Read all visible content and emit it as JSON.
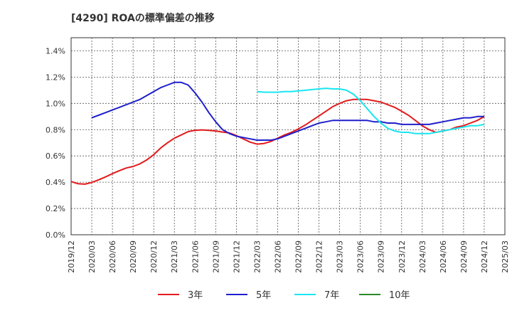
{
  "chart_data": {
    "type": "line",
    "title": "[4290]  ROAの標準偏差の推移",
    "xlabel": "",
    "ylabel": "",
    "ylim": [
      0,
      0.015
    ],
    "yticks": [
      0,
      0.002,
      0.004,
      0.006,
      0.008,
      0.01,
      0.012,
      0.014
    ],
    "ytick_labels": [
      "0.0%",
      "0.2%",
      "0.4%",
      "0.6%",
      "0.8%",
      "1.0%",
      "1.2%",
      "1.4%"
    ],
    "x_tick_labels": [
      "2019/12",
      "2020/03",
      "2020/06",
      "2020/09",
      "2020/12",
      "2021/03",
      "2021/06",
      "2021/09",
      "2021/12",
      "2022/03",
      "2022/06",
      "2022/09",
      "2022/12",
      "2023/03",
      "2023/06",
      "2023/09",
      "2023/12",
      "2024/03",
      "2024/06",
      "2024/09",
      "2024/12",
      "2025/03"
    ],
    "grid": true,
    "legend_position": "bottom",
    "series": [
      {
        "name": "3年",
        "color": "#e31a1c",
        "x": [
          "2019/12",
          "2020/01",
          "2020/02",
          "2020/03",
          "2020/04",
          "2020/05",
          "2020/06",
          "2020/07",
          "2020/08",
          "2020/09",
          "2020/10",
          "2020/11",
          "2020/12",
          "2021/01",
          "2021/02",
          "2021/03",
          "2021/04",
          "2021/05",
          "2021/06",
          "2021/07",
          "2021/08",
          "2021/09",
          "2021/10",
          "2021/11",
          "2021/12",
          "2022/01",
          "2022/02",
          "2022/03",
          "2022/04",
          "2022/05",
          "2022/06",
          "2022/07",
          "2022/08",
          "2022/09",
          "2022/10",
          "2022/11",
          "2022/12",
          "2023/01",
          "2023/02",
          "2023/03",
          "2023/04",
          "2023/05",
          "2023/06",
          "2023/07",
          "2023/08",
          "2023/09",
          "2023/10",
          "2023/11",
          "2023/12",
          "2024/01",
          "2024/02",
          "2024/03",
          "2024/04",
          "2024/05",
          "2024/06",
          "2024/07",
          "2024/08",
          "2024/09",
          "2024/10",
          "2024/11",
          "2024/12"
        ],
        "values": [
          0.00405,
          0.00388,
          0.00385,
          0.00398,
          0.00418,
          0.0044,
          0.00465,
          0.00488,
          0.00508,
          0.0052,
          0.0054,
          0.0057,
          0.0061,
          0.0066,
          0.007,
          0.00735,
          0.0076,
          0.00785,
          0.00795,
          0.00798,
          0.00795,
          0.0079,
          0.00782,
          0.00775,
          0.00755,
          0.0073,
          0.00705,
          0.0069,
          0.00695,
          0.0071,
          0.00735,
          0.0076,
          0.0078,
          0.00805,
          0.00835,
          0.0087,
          0.00905,
          0.0094,
          0.00975,
          0.01,
          0.0102,
          0.0103,
          0.0103,
          0.0103,
          0.0102,
          0.0101,
          0.0099,
          0.0097,
          0.0094,
          0.0091,
          0.0087,
          0.0083,
          0.008,
          0.0078,
          0.0079,
          0.008,
          0.0082,
          0.0083,
          0.0085,
          0.0087,
          0.009
        ]
      },
      {
        "name": "5年",
        "color": "#1f1fcc",
        "x": [
          "2020/03",
          "2020/04",
          "2020/05",
          "2020/06",
          "2020/07",
          "2020/08",
          "2020/09",
          "2020/10",
          "2020/11",
          "2020/12",
          "2021/01",
          "2021/02",
          "2021/03",
          "2021/04",
          "2021/05",
          "2021/06",
          "2021/07",
          "2021/08",
          "2021/09",
          "2021/10",
          "2021/11",
          "2021/12",
          "2022/01",
          "2022/02",
          "2022/03",
          "2022/04",
          "2022/05",
          "2022/06",
          "2022/07",
          "2022/08",
          "2022/09",
          "2022/10",
          "2022/11",
          "2022/12",
          "2023/01",
          "2023/02",
          "2023/03",
          "2023/04",
          "2023/05",
          "2023/06",
          "2023/07",
          "2023/08",
          "2023/09",
          "2023/10",
          "2023/11",
          "2023/12",
          "2024/01",
          "2024/02",
          "2024/03",
          "2024/04",
          "2024/05",
          "2024/06",
          "2024/07",
          "2024/08",
          "2024/09",
          "2024/10",
          "2024/11",
          "2024/12"
        ],
        "values": [
          0.0089,
          0.0091,
          0.0093,
          0.0095,
          0.0097,
          0.0099,
          0.0101,
          0.0103,
          0.0106,
          0.0109,
          0.0112,
          0.0114,
          0.0116,
          0.0116,
          0.0114,
          0.0108,
          0.0101,
          0.0093,
          0.0086,
          0.008,
          0.0077,
          0.0075,
          0.0074,
          0.0073,
          0.0072,
          0.0072,
          0.0072,
          0.0073,
          0.0075,
          0.0077,
          0.0079,
          0.0081,
          0.0083,
          0.0085,
          0.0086,
          0.0087,
          0.0087,
          0.0087,
          0.0087,
          0.0087,
          0.0087,
          0.0086,
          0.0086,
          0.0085,
          0.0085,
          0.0084,
          0.0084,
          0.0084,
          0.0084,
          0.0084,
          0.0085,
          0.0086,
          0.0087,
          0.0088,
          0.0089,
          0.0089,
          0.009,
          0.009
        ]
      },
      {
        "name": "7年",
        "color": "#19e6f0",
        "x": [
          "2022/03",
          "2022/04",
          "2022/05",
          "2022/06",
          "2022/07",
          "2022/08",
          "2022/09",
          "2022/10",
          "2022/11",
          "2022/12",
          "2023/01",
          "2023/02",
          "2023/03",
          "2023/04",
          "2023/05",
          "2023/06",
          "2023/07",
          "2023/08",
          "2023/09",
          "2023/10",
          "2023/11",
          "2023/12",
          "2024/01",
          "2024/02",
          "2024/03",
          "2024/04",
          "2024/05",
          "2024/06",
          "2024/07",
          "2024/08",
          "2024/09",
          "2024/10",
          "2024/11",
          "2024/12"
        ],
        "values": [
          0.0109,
          0.01085,
          0.01085,
          0.01085,
          0.0109,
          0.0109,
          0.01095,
          0.011,
          0.01105,
          0.0111,
          0.01115,
          0.0111,
          0.0111,
          0.011,
          0.0107,
          0.0102,
          0.0096,
          0.009,
          0.0085,
          0.0081,
          0.0079,
          0.0078,
          0.0078,
          0.0077,
          0.0077,
          0.0077,
          0.0078,
          0.0079,
          0.008,
          0.0081,
          0.0082,
          0.0083,
          0.0083,
          0.0084
        ]
      },
      {
        "name": "10年",
        "color": "#2a8a2a",
        "x": [],
        "values": []
      }
    ]
  }
}
